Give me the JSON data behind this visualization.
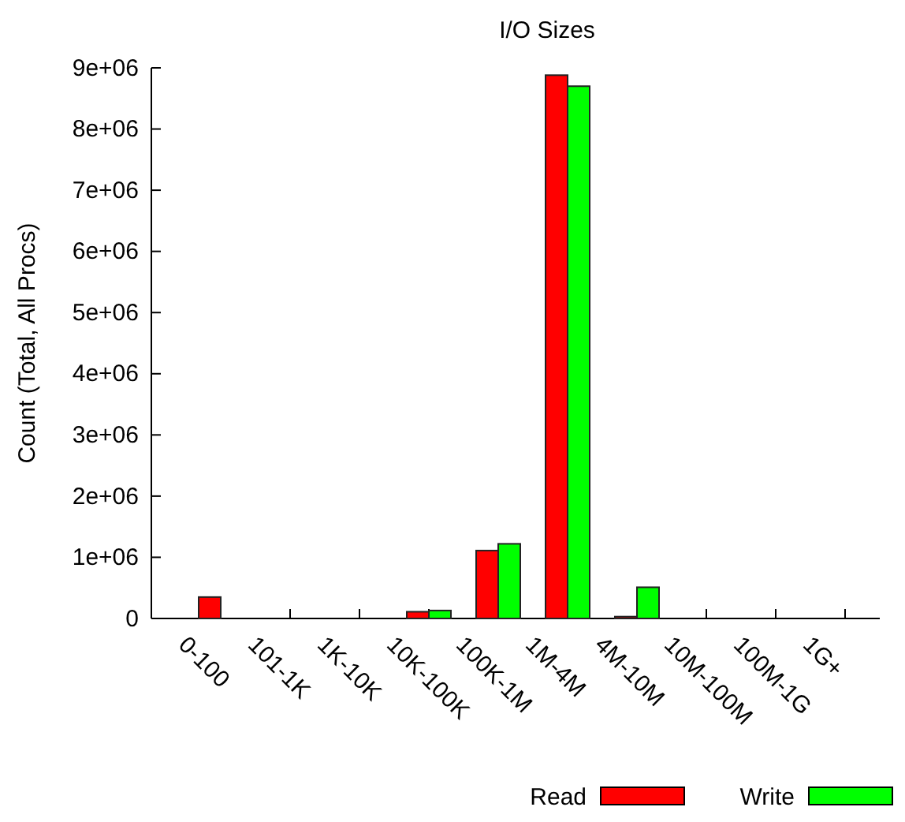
{
  "chart_data": {
    "type": "bar",
    "title": "I/O Sizes",
    "ylabel": "Count (Total, All Procs)",
    "categories": [
      "0-100",
      "101-1K",
      "1K-10K",
      "10K-100K",
      "100K-1M",
      "1M-4M",
      "4M-10M",
      "10M-100M",
      "100M-1G",
      "1G+"
    ],
    "series": [
      {
        "name": "Read",
        "color": "#ff0000",
        "values": [
          350000,
          0,
          null,
          110000,
          1110000,
          8880000,
          30000,
          0,
          0,
          0
        ]
      },
      {
        "name": "Write",
        "color": "#00ff00",
        "values": [
          0,
          0,
          null,
          130000,
          1220000,
          8700000,
          510000,
          0,
          0,
          0
        ]
      }
    ],
    "ylim": [
      0,
      9000000
    ],
    "yticks": [
      0,
      {
        "value": 1000000,
        "label": "1e+06"
      },
      {
        "value": 2000000,
        "label": "2e+06"
      },
      {
        "value": 3000000,
        "label": "3e+06"
      },
      {
        "value": 4000000,
        "label": "4e+06"
      },
      {
        "value": 5000000,
        "label": "5e+06"
      },
      {
        "value": 6000000,
        "label": "6e+06"
      },
      {
        "value": 7000000,
        "label": "7e+06"
      },
      {
        "value": 8000000,
        "label": "8e+06"
      },
      {
        "value": 9000000,
        "label": "9e+06"
      }
    ],
    "legend": "bottom right",
    "grid": false
  }
}
